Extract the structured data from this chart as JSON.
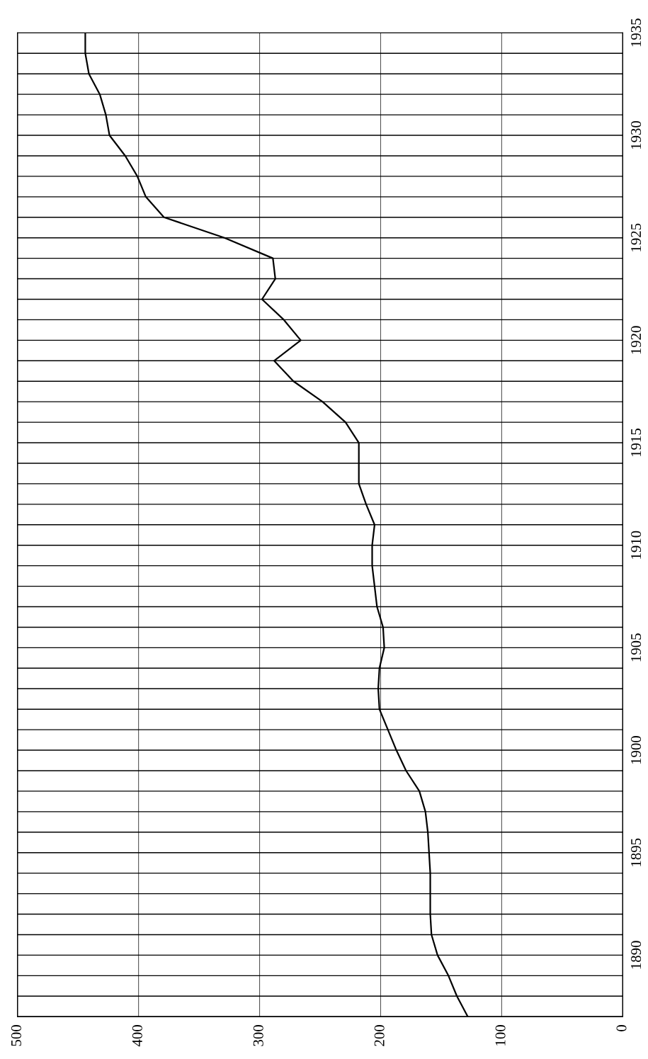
{
  "chart_data": {
    "type": "line",
    "x": [
      128,
      137,
      144,
      153,
      158,
      159,
      159,
      159,
      160,
      161,
      163,
      168,
      179,
      187,
      194,
      201,
      202,
      201,
      197,
      198,
      203,
      205,
      207,
      207,
      205,
      212,
      218,
      218,
      218,
      229,
      248,
      272,
      288,
      266,
      280,
      298,
      287,
      289,
      329,
      379,
      394,
      401,
      411,
      424,
      427,
      432,
      441,
      444,
      444
    ],
    "series": [
      {
        "color": "#000000",
        "values": [
          1887,
          1888,
          1889,
          1890,
          1891,
          1892,
          1893,
          1894,
          1895,
          1896,
          1897,
          1898,
          1899,
          1900,
          1901,
          1902,
          1903,
          1904,
          1905,
          1906,
          1907,
          1908,
          1909,
          1910,
          1911,
          1912,
          1913,
          1914,
          1915,
          1916,
          1917,
          1918,
          1919,
          1920,
          1921,
          1922,
          1923,
          1924,
          1925,
          1926,
          1927,
          1928,
          1929,
          1930,
          1931,
          1932,
          1933,
          1934,
          1935
        ]
      }
    ],
    "xlim": [
      500,
      0
    ],
    "xticks": [
      500,
      400,
      300,
      200,
      100,
      0
    ],
    "ylim": [
      1887,
      1935
    ],
    "yticks": [
      {
        "value": 1887,
        "label": null
      },
      {
        "value": 1888,
        "label": null
      },
      {
        "value": 1889,
        "label": null
      },
      1890,
      {
        "value": 1891,
        "label": null
      },
      {
        "value": 1892,
        "label": null
      },
      {
        "value": 1893,
        "label": null
      },
      {
        "value": 1894,
        "label": null
      },
      1895,
      {
        "value": 1896,
        "label": null
      },
      {
        "value": 1897,
        "label": null
      },
      {
        "value": 1898,
        "label": null
      },
      {
        "value": 1899,
        "label": null
      },
      1900,
      {
        "value": 1901,
        "label": null
      },
      {
        "value": 1902,
        "label": null
      },
      {
        "value": 1903,
        "label": null
      },
      {
        "value": 1904,
        "label": null
      },
      1905,
      {
        "value": 1906,
        "label": null
      },
      {
        "value": 1907,
        "label": null
      },
      {
        "value": 1908,
        "label": null
      },
      {
        "value": 1909,
        "label": null
      },
      1910,
      {
        "value": 1911,
        "label": null
      },
      {
        "value": 1912,
        "label": null
      },
      {
        "value": 1913,
        "label": null
      },
      {
        "value": 1914,
        "label": null
      },
      1915,
      {
        "value": 1916,
        "label": null
      },
      {
        "value": 1917,
        "label": null
      },
      {
        "value": 1918,
        "label": null
      },
      {
        "value": 1919,
        "label": null
      },
      1920,
      {
        "value": 1921,
        "label": null
      },
      {
        "value": 1922,
        "label": null
      },
      {
        "value": 1923,
        "label": null
      },
      {
        "value": 1924,
        "label": null
      },
      1925,
      {
        "value": 1926,
        "label": null
      },
      {
        "value": 1927,
        "label": null
      },
      {
        "value": 1928,
        "label": null
      },
      {
        "value": 1929,
        "label": null
      },
      1930,
      {
        "value": 1931,
        "label": null
      },
      {
        "value": 1932,
        "label": null
      },
      {
        "value": 1933,
        "label": null
      },
      {
        "value": 1934,
        "label": null
      },
      1935
    ],
    "grid": true
  }
}
